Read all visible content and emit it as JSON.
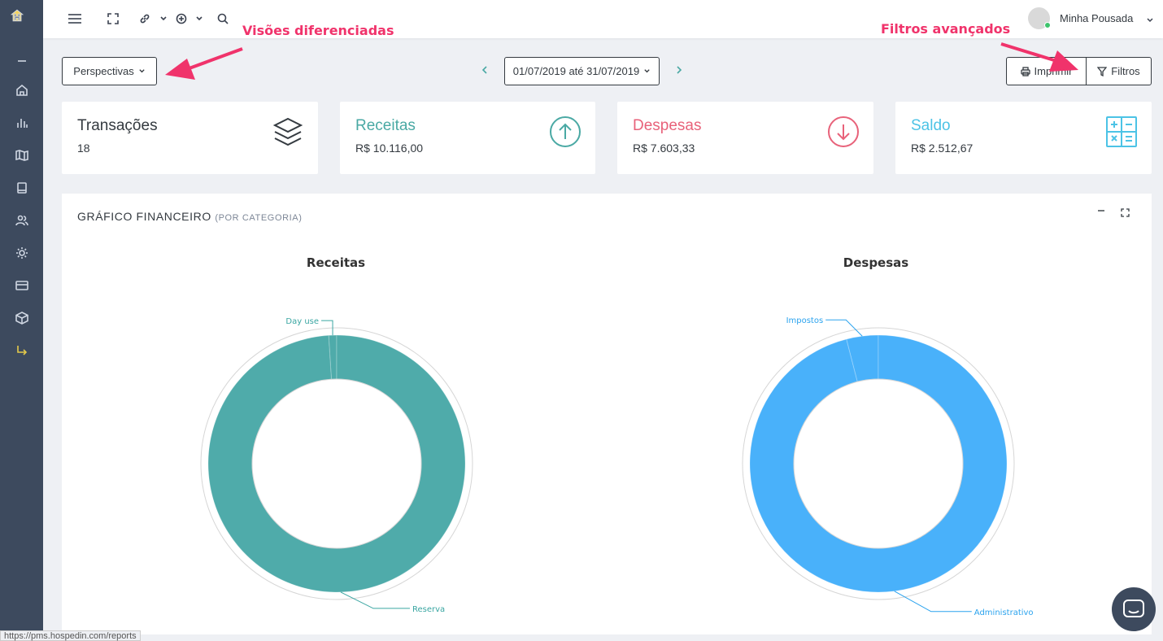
{
  "sidebar": {
    "items": [
      {
        "icon": "collapse-icon"
      },
      {
        "icon": "home-icon"
      },
      {
        "icon": "bar-chart-icon"
      },
      {
        "icon": "map-icon"
      },
      {
        "icon": "book-icon"
      },
      {
        "icon": "users-icon"
      },
      {
        "icon": "sun-icon"
      },
      {
        "icon": "credit-card-icon"
      },
      {
        "icon": "box-icon"
      },
      {
        "icon": "arrow-turn-icon"
      }
    ]
  },
  "user": {
    "name": "Minha Pousada"
  },
  "toolbar": {
    "perspectives_label": "Perspectivas",
    "date_range": "01/07/2019 até 31/07/2019",
    "print_label": "Imprimir",
    "filters_label": "Filtros"
  },
  "annotations": {
    "left": "Visões diferenciadas",
    "right": "Filtros avançados"
  },
  "cards": [
    {
      "title": "Transações",
      "value": "18",
      "color": "#343a40",
      "icon": "layers-icon"
    },
    {
      "title": "Receitas",
      "value": "R$ 10.116,00",
      "color": "#4aa9a4",
      "icon": "arrow-up-circle-icon"
    },
    {
      "title": "Despesas",
      "value": "R$ 7.603,33",
      "color": "#e8627a",
      "icon": "arrow-down-circle-icon"
    },
    {
      "title": "Saldo",
      "value": "R$ 2.512,67",
      "color": "#4cc3e6",
      "icon": "calculator-icon"
    }
  ],
  "panel": {
    "title": "GRÁFICO FINANCEIRO",
    "subtitle": "(POR CATEGORIA)"
  },
  "chart_data": [
    {
      "type": "pie",
      "title": "Receitas",
      "categories": [
        "Reserva",
        "Day use"
      ],
      "values": [
        99,
        1
      ],
      "colors": [
        "#4fabaa",
        "#4fabaa"
      ],
      "label_color": "#3aa6a2"
    },
    {
      "type": "pie",
      "title": "Despesas",
      "categories": [
        "Administrativo",
        "Impostos"
      ],
      "values": [
        96,
        4
      ],
      "colors": [
        "#49b1fa",
        "#49b1fa"
      ],
      "label_color": "#2ba3ee"
    }
  ],
  "status_url": "https://pms.hospedin.com/reports"
}
